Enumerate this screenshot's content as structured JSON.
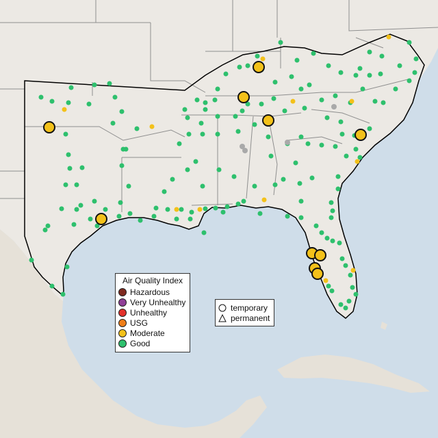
{
  "map": {
    "description_free": true,
    "colors": {
      "water": "#cfdde9",
      "land": "#ece9e4",
      "mexico_land": "#e6e1d8",
      "state_border": "#8e8e8e",
      "region_outline": "#000000",
      "hazardous": "#7e2a1f",
      "very_unhealthy": "#8f3f97",
      "unhealthy": "#e2312b",
      "usg": "#ef7e18",
      "moderate": "#f3c11a",
      "good": "#2ec06d",
      "gray_site": "#a9a9a9"
    }
  },
  "aqi_legend": {
    "title": "Air Quality Index",
    "items": [
      {
        "label": "Hazardous",
        "color": "#7e2a1f"
      },
      {
        "label": "Very Unhealthy",
        "color": "#8f3f97"
      },
      {
        "label": "Unhealthy",
        "color": "#e2312b"
      },
      {
        "label": "USG",
        "color": "#ef7e18"
      },
      {
        "label": "Moderate",
        "color": "#f3c11a"
      },
      {
        "label": "Good",
        "color": "#2ec06d"
      }
    ]
  },
  "monitor_type_legend": {
    "items": [
      {
        "label": "temporary",
        "shape": "circle-icon"
      },
      {
        "label": "permanent",
        "shape": "triangle-icon"
      }
    ]
  }
}
